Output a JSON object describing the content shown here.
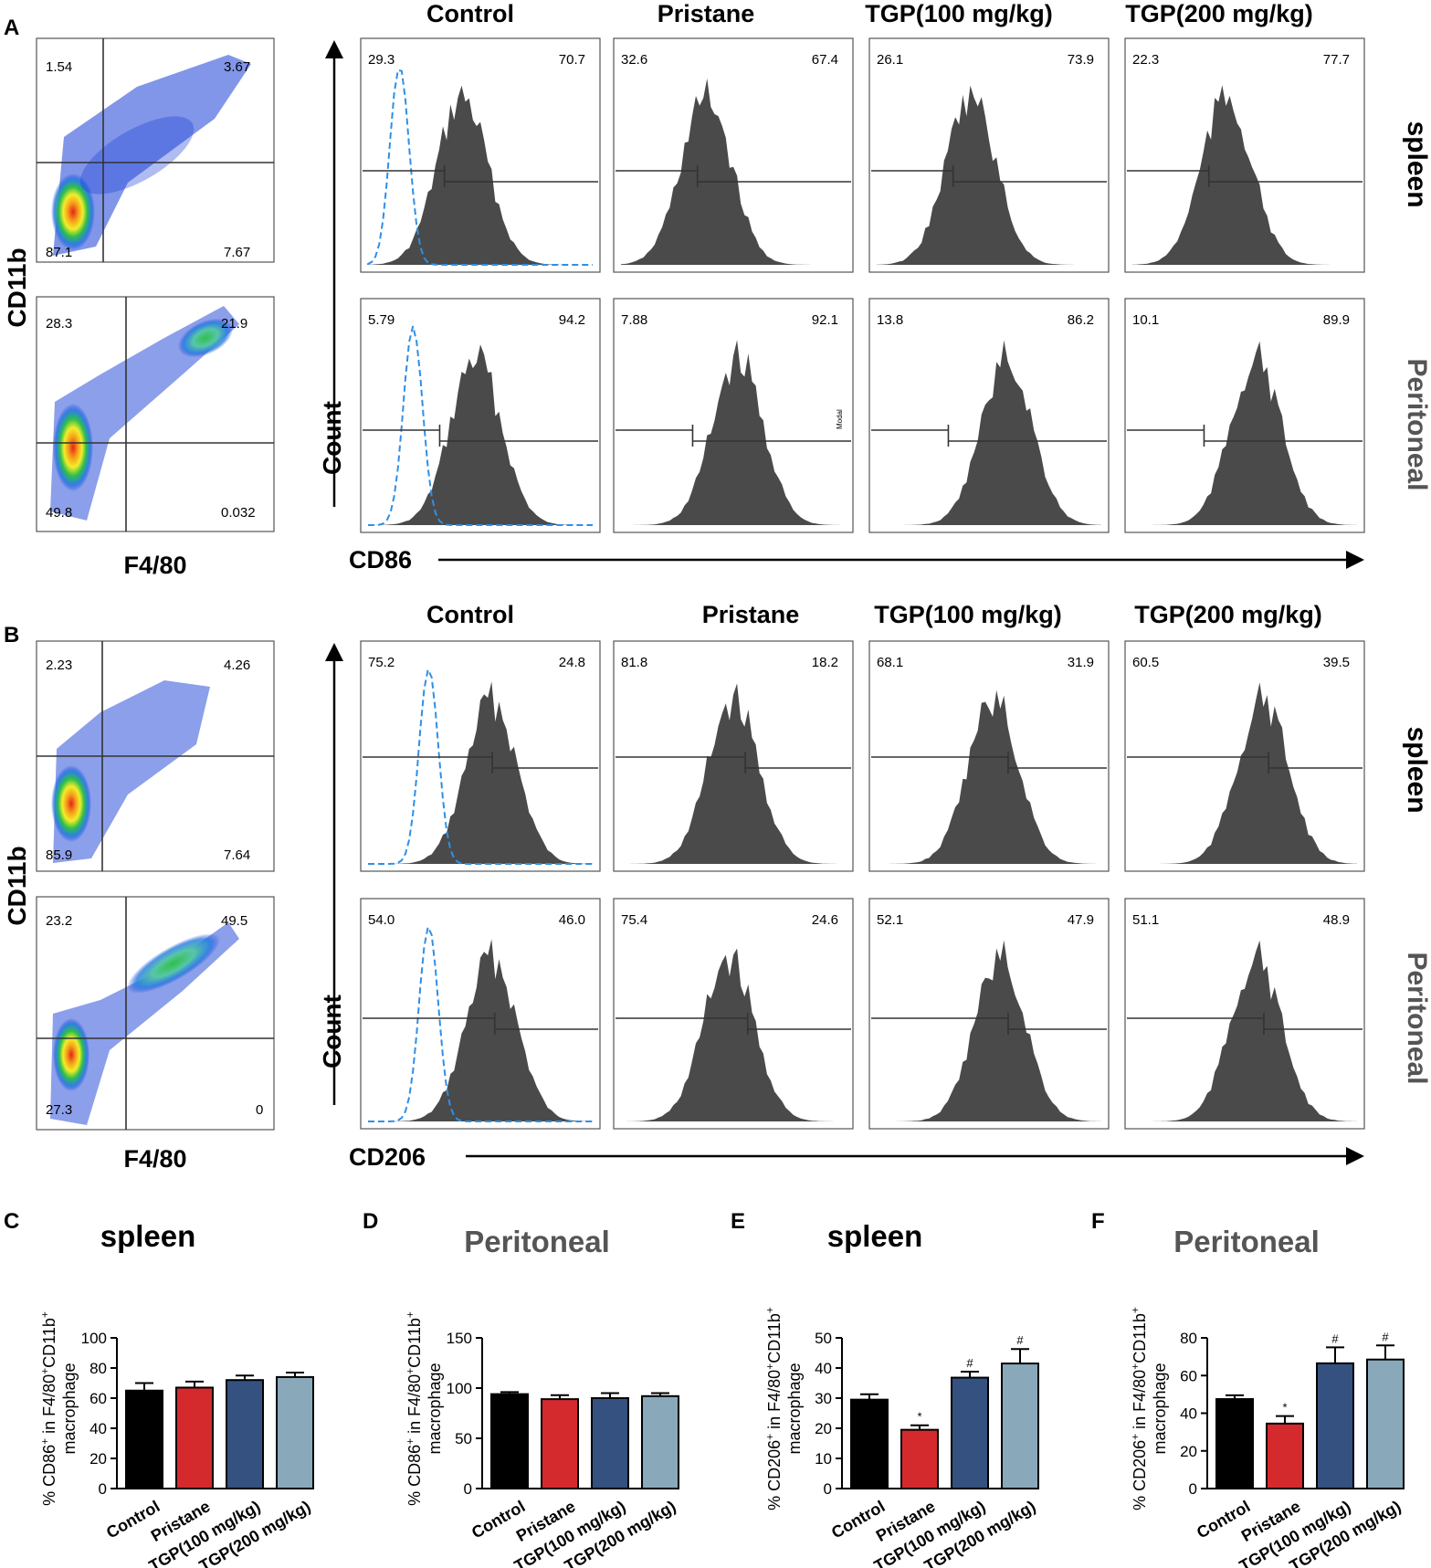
{
  "panel_letters": [
    "A",
    "B",
    "C",
    "D",
    "E",
    "F"
  ],
  "colors": {
    "control": "#000000",
    "pristane": "#d42a2e",
    "tgp100": "#34517f",
    "tgp200": "#89a9bb",
    "hist_fill": "#4a4a4a",
    "dash": "#2e8fe8",
    "peritoneal_title": "#555555"
  },
  "flow_groups": [
    "Control",
    "Pristane",
    "TGP(100 mg/kg)",
    "TGP(200 mg/kg)"
  ],
  "row_labels": {
    "spleen": "spleen",
    "peritoneal": "Peritoneal"
  },
  "axis_text": {
    "cd11b": "CD11b",
    "f480": "F4/80",
    "count": "Count",
    "cd86": "CD86",
    "cd206": "CD206",
    "modal": "Modal"
  },
  "panelA": {
    "dot_spleen": {
      "ul": "1.54",
      "ur": "3.67",
      "ll": "87.1",
      "lr": "7.67"
    },
    "dot_peritoneal": {
      "ul": "28.3",
      "ur": "21.9",
      "ll": "49.8",
      "lr": "0.032"
    },
    "hist_spleen": [
      [
        "29.3",
        "70.7"
      ],
      [
        "32.6",
        "67.4"
      ],
      [
        "26.1",
        "73.9"
      ],
      [
        "22.3",
        "77.7"
      ]
    ],
    "hist_peritoneal": [
      [
        "5.79",
        "94.2"
      ],
      [
        "7.88",
        "92.1"
      ],
      [
        "13.8",
        "86.2"
      ],
      [
        "10.1",
        "89.9"
      ]
    ]
  },
  "panelB": {
    "dot_spleen": {
      "ul": "2.23",
      "ur": "4.26",
      "ll": "85.9",
      "lr": "7.64"
    },
    "dot_peritoneal": {
      "ul": "23.2",
      "ur": "49.5",
      "ll": "27.3",
      "lr": "0"
    },
    "hist_spleen": [
      [
        "75.2",
        "24.8"
      ],
      [
        "81.8",
        "18.2"
      ],
      [
        "68.1",
        "31.9"
      ],
      [
        "60.5",
        "39.5"
      ]
    ],
    "hist_peritoneal": [
      [
        "54.0",
        "46.0"
      ],
      [
        "75.4",
        "24.6"
      ],
      [
        "52.1",
        "47.9"
      ],
      [
        "51.1",
        "48.9"
      ]
    ]
  },
  "ylabel_cd86": [
    "% CD86",
    "+",
    " in  F4/80",
    "+",
    "CD11b",
    "+"
  ],
  "ylabel_cd206": [
    "% CD206",
    "+",
    " in  F4/80",
    "+",
    "CD11b",
    "+"
  ],
  "ylabel_line2": "macrophage",
  "chart_data": [
    {
      "panel": "C",
      "type": "bar",
      "title": "spleen",
      "categories": [
        "Control",
        "Pristane",
        "TGP(100 mg/kg)",
        "TGP(200 mg/kg)"
      ],
      "values": [
        65,
        67,
        72,
        74
      ],
      "errors": [
        5,
        4,
        3,
        3
      ],
      "ylim": [
        0,
        100
      ],
      "yticks": [
        0,
        20,
        40,
        60,
        80,
        100
      ],
      "annotations": [
        "",
        "",
        "",
        ""
      ],
      "ylabel": "% CD86+ in F4/80+CD11b+ macrophage"
    },
    {
      "panel": "D",
      "type": "bar",
      "title": "Peritoneal",
      "categories": [
        "Control",
        "Pristane",
        "TGP(100 mg/kg)",
        "TGP(200 mg/kg)"
      ],
      "values": [
        94,
        89,
        90,
        92
      ],
      "errors": [
        2,
        4,
        5,
        3
      ],
      "ylim": [
        0,
        150
      ],
      "yticks": [
        0,
        50,
        100,
        150
      ],
      "annotations": [
        "",
        "",
        "",
        ""
      ],
      "ylabel": "% CD86+ in F4/80+CD11b+ macrophage"
    },
    {
      "panel": "E",
      "type": "bar",
      "title": "spleen",
      "categories": [
        "Control",
        "Pristane",
        "TGP(100 mg/kg)",
        "TGP(200 mg/kg)"
      ],
      "values": [
        29.5,
        19.5,
        36.8,
        41.5
      ],
      "errors": [
        1.8,
        1.5,
        2.0,
        4.8
      ],
      "ylim": [
        0,
        50
      ],
      "yticks": [
        0,
        10,
        20,
        30,
        40,
        50
      ],
      "annotations": [
        "",
        "*",
        "#",
        "#"
      ],
      "ylabel": "% CD206+ in F4/80+CD11b+ macrophage"
    },
    {
      "panel": "F",
      "type": "bar",
      "title": "Peritoneal",
      "categories": [
        "Control",
        "Pristane",
        "TGP(100 mg/kg)",
        "TGP(200 mg/kg)"
      ],
      "values": [
        47.5,
        34.5,
        66.5,
        68.5
      ],
      "errors": [
        2.0,
        4.0,
        8.5,
        7.5
      ],
      "ylim": [
        0,
        80
      ],
      "yticks": [
        0,
        20,
        40,
        60,
        80
      ],
      "annotations": [
        "",
        "*",
        "#",
        "#"
      ],
      "ylabel": "% CD206+ in F4/80+CD11b+ macrophage"
    }
  ]
}
